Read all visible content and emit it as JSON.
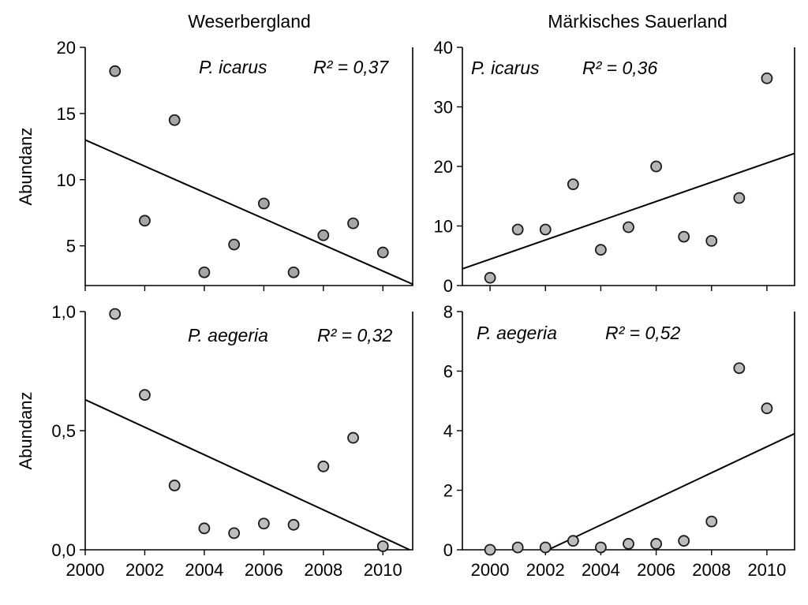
{
  "figure": {
    "column_titles": [
      "Weserbergland",
      "Märkisches Sauerland"
    ]
  },
  "chart_data": [
    {
      "type": "scatter",
      "region": "Weserbergland",
      "species": "P. icarus",
      "r2_label": "R² = 0,37",
      "ylabel": "Abundanz",
      "xlim": [
        2000,
        2011
      ],
      "ylim": [
        2,
        20
      ],
      "xticks": [
        2000,
        2002,
        2004,
        2006,
        2008,
        2010
      ],
      "xtick_labels": [],
      "yticks": [
        5,
        10,
        15,
        20
      ],
      "ytick_labels": [
        "5",
        "10",
        "15",
        "20"
      ],
      "point_color": "#a6a6a6",
      "x": [
        2001,
        2002,
        2003,
        2004,
        2005,
        2006,
        2007,
        2008,
        2009,
        2010
      ],
      "y": [
        18.2,
        6.9,
        14.5,
        3.0,
        5.1,
        8.2,
        3.0,
        5.8,
        6.7,
        4.5
      ],
      "trend": {
        "x": [
          2000,
          2011
        ],
        "y": [
          13.0,
          2.1
        ]
      }
    },
    {
      "type": "scatter",
      "region": "Märkisches Sauerland",
      "species": "P. icarus",
      "r2_label": "R² = 0,36",
      "ylabel": "",
      "xlim": [
        1999,
        2011
      ],
      "ylim": [
        0,
        40
      ],
      "xticks": [
        2000,
        2002,
        2004,
        2006,
        2008,
        2010
      ],
      "xtick_labels": [],
      "yticks": [
        0,
        10,
        20,
        30,
        40
      ],
      "ytick_labels": [
        "0",
        "10",
        "20",
        "30",
        "40"
      ],
      "point_color": "#b5b5b5",
      "x": [
        2000,
        2001,
        2002,
        2003,
        2004,
        2005,
        2006,
        2007,
        2008,
        2009,
        2010
      ],
      "y": [
        1.3,
        9.4,
        9.4,
        17.0,
        6.0,
        9.8,
        20.0,
        8.2,
        7.5,
        14.7,
        34.8
      ],
      "trend": {
        "x": [
          1999,
          2011
        ],
        "y": [
          2.8,
          22.2
        ]
      }
    },
    {
      "type": "scatter",
      "region": "Weserbergland",
      "species": "P. aegeria",
      "r2_label": "R² = 0,32",
      "ylabel": "Abundanz",
      "xlim": [
        2000,
        2011
      ],
      "ylim": [
        0,
        1
      ],
      "xticks": [
        2000,
        2002,
        2004,
        2006,
        2008,
        2010
      ],
      "xtick_labels": [
        "2000",
        "2002",
        "2004",
        "2006",
        "2008",
        "2010"
      ],
      "yticks": [
        0,
        0.5,
        1
      ],
      "ytick_labels": [
        "0,0",
        "0,5",
        "1,0"
      ],
      "point_color": "#bdbdbd",
      "x": [
        2001,
        2002,
        2003,
        2004,
        2005,
        2006,
        2007,
        2008,
        2009,
        2010
      ],
      "y": [
        0.99,
        0.65,
        0.27,
        0.09,
        0.07,
        0.11,
        0.105,
        0.35,
        0.47,
        0.015
      ],
      "trend": {
        "x": [
          2000,
          2010.9
        ],
        "y": [
          0.63,
          0.0
        ]
      }
    },
    {
      "type": "scatter",
      "region": "Märkisches Sauerland",
      "species": "P. aegeria",
      "r2_label": "R² = 0,52",
      "ylabel": "",
      "xlim": [
        1999,
        2011
      ],
      "ylim": [
        0,
        8
      ],
      "xticks": [
        2000,
        2002,
        2004,
        2006,
        2008,
        2010
      ],
      "xtick_labels": [
        "2000",
        "2002",
        "2004",
        "2006",
        "2008",
        "2010"
      ],
      "yticks": [
        0,
        2,
        4,
        6,
        8
      ],
      "ytick_labels": [
        "0",
        "2",
        "4",
        "6",
        "8"
      ],
      "point_color": "#bdbdbd",
      "x": [
        2000,
        2001,
        2002,
        2003,
        2004,
        2005,
        2006,
        2007,
        2008,
        2009,
        2010
      ],
      "y": [
        0.0,
        0.08,
        0.08,
        0.3,
        0.08,
        0.2,
        0.2,
        0.3,
        0.95,
        6.1,
        4.75
      ],
      "trend": {
        "x": [
          2002.1,
          2011
        ],
        "y": [
          0.0,
          3.9
        ]
      }
    }
  ]
}
